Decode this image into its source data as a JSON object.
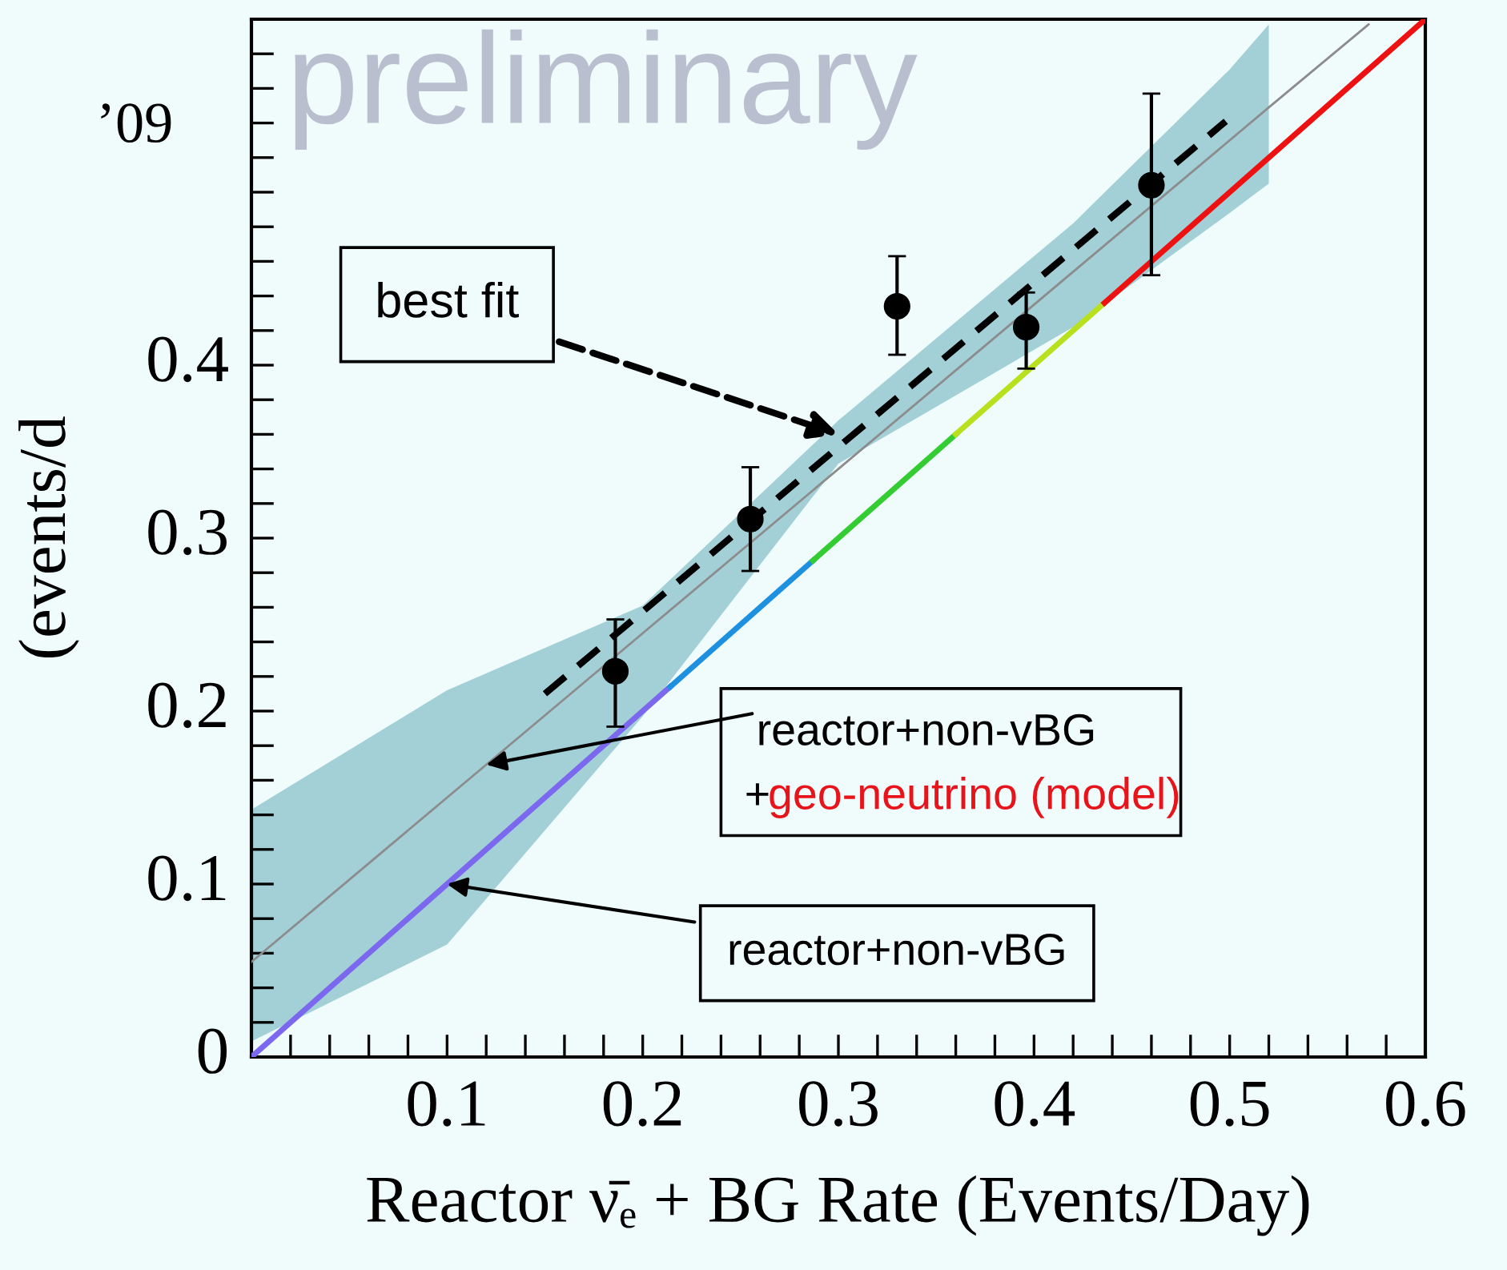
{
  "chart_data": {
    "type": "scatter",
    "xlabel": "Reactor ν̄ₑ + BG Rate (Events/Day)",
    "ylabel": "(events/d",
    "xlim": [
      0,
      0.6
    ],
    "ylim": [
      0,
      0.6
    ],
    "xticks": [
      {
        "value": 0.02,
        "label": null
      },
      {
        "value": 0.04,
        "label": null
      },
      {
        "value": 0.06,
        "label": null
      },
      {
        "value": 0.08,
        "label": null
      },
      0.1,
      {
        "value": 0.12,
        "label": null
      },
      {
        "value": 0.14,
        "label": null
      },
      {
        "value": 0.16,
        "label": null
      },
      {
        "value": 0.18,
        "label": null
      },
      0.2,
      {
        "value": 0.22,
        "label": null
      },
      {
        "value": 0.24,
        "label": null
      },
      {
        "value": 0.26,
        "label": null
      },
      {
        "value": 0.28,
        "label": null
      },
      0.3,
      {
        "value": 0.32,
        "label": null
      },
      {
        "value": 0.34,
        "label": null
      },
      {
        "value": 0.36,
        "label": null
      },
      {
        "value": 0.38,
        "label": null
      },
      0.4,
      {
        "value": 0.42,
        "label": null
      },
      {
        "value": 0.44,
        "label": null
      },
      {
        "value": 0.46,
        "label": null
      },
      {
        "value": 0.48,
        "label": null
      },
      0.5,
      {
        "value": 0.52,
        "label": null
      },
      {
        "value": 0.54,
        "label": null
      },
      {
        "value": 0.56,
        "label": null
      },
      {
        "value": 0.58,
        "label": null
      },
      0.6
    ],
    "yticks": [
      0,
      {
        "value": 0.02,
        "label": null
      },
      {
        "value": 0.04,
        "label": null
      },
      {
        "value": 0.06,
        "label": null
      },
      {
        "value": 0.08,
        "label": null
      },
      0.1,
      {
        "value": 0.12,
        "label": null
      },
      {
        "value": 0.14,
        "label": null
      },
      {
        "value": 0.16,
        "label": null
      },
      {
        "value": 0.18,
        "label": null
      },
      0.2,
      {
        "value": 0.22,
        "label": null
      },
      {
        "value": 0.24,
        "label": null
      },
      {
        "value": 0.26,
        "label": null
      },
      {
        "value": 0.28,
        "label": null
      },
      0.3,
      {
        "value": 0.32,
        "label": null
      },
      {
        "value": 0.34,
        "label": null
      },
      {
        "value": 0.36,
        "label": null
      },
      {
        "value": 0.38,
        "label": null
      },
      0.4,
      {
        "value": 0.42,
        "label": null
      },
      {
        "value": 0.44,
        "label": null
      },
      {
        "value": 0.46,
        "label": null
      },
      {
        "value": 0.48,
        "label": null
      },
      {
        "value": 0.5,
        "label": null
      },
      {
        "value": 0.52,
        "label": null
      },
      {
        "value": 0.54,
        "label": null
      },
      {
        "value": 0.56,
        "label": null
      },
      {
        "value": 0.58,
        "label": null
      }
    ],
    "grid": false,
    "legend": false,
    "series": [
      {
        "type": "line",
        "color": "#8c8c8c",
        "x": [
          0,
          0.1,
          0.2,
          0.3,
          0.42,
          0.5,
          0.52,
          0.571
        ],
        "values": [
          0.055,
          0.15,
          0.245,
          0.34,
          0.454,
          0.53,
          0.549,
          0.597
        ],
        "lower": [
          0.009,
          0.065,
          0.197,
          0.343,
          0.422,
          0.488,
          0.505,
          null
        ],
        "upper": [
          0.143,
          0.212,
          0.261,
          0.368,
          0.482,
          0.571,
          0.597,
          null
        ],
        "line_style": "solid"
      },
      {
        "type": "line",
        "color": "#7b68ee",
        "x": [
          0,
          0.214
        ],
        "values": [
          0,
          0.214
        ],
        "line_style": "solid"
      },
      {
        "type": "line",
        "color": "#1e90e0",
        "x": [
          0.214,
          0.287
        ],
        "values": [
          0.214,
          0.287
        ],
        "line_style": "solid"
      },
      {
        "type": "line",
        "color": "#33cc33",
        "x": [
          0.287,
          0.36
        ],
        "values": [
          0.287,
          0.36
        ],
        "line_style": "solid"
      },
      {
        "type": "line",
        "color": "#b8e01c",
        "x": [
          0.36,
          0.436
        ],
        "values": [
          0.36,
          0.436
        ],
        "line_style": "solid"
      },
      {
        "type": "line",
        "color": "#ee1111",
        "x": [
          0.436,
          0.6
        ],
        "values": [
          0.436,
          0.6
        ],
        "line_style": "solid"
      },
      {
        "type": "line",
        "color": "#000000",
        "x": [
          0.15,
          0.498
        ],
        "values": [
          0.21,
          0.541
        ],
        "line_style": "dashed"
      },
      {
        "color": "#000000",
        "marker": "circle",
        "x": [
          0.186,
          0.255,
          0.33,
          0.396,
          0.46
        ],
        "values": [
          0.223,
          0.311,
          0.434,
          0.422,
          0.504
        ],
        "errors": [
          [
            0.191,
            0.253
          ],
          [
            0.281,
            0.341
          ],
          [
            0.406,
            0.463
          ],
          [
            0.398,
            0.442
          ],
          [
            0.452,
            0.557
          ]
        ]
      }
    ],
    "annotations": [
      "preliminary",
      {
        "text": "best fit",
        "x": 0.3,
        "y": 0.36
      },
      {
        "text": "reactor+non-vBG",
        "x": 0.12,
        "y": 0.169
      },
      "+",
      "geo-neutrino (model)",
      {
        "text": "reactor+non-vBG",
        "x": 0.1,
        "y": 0.1
      },
      "’09"
    ]
  }
}
